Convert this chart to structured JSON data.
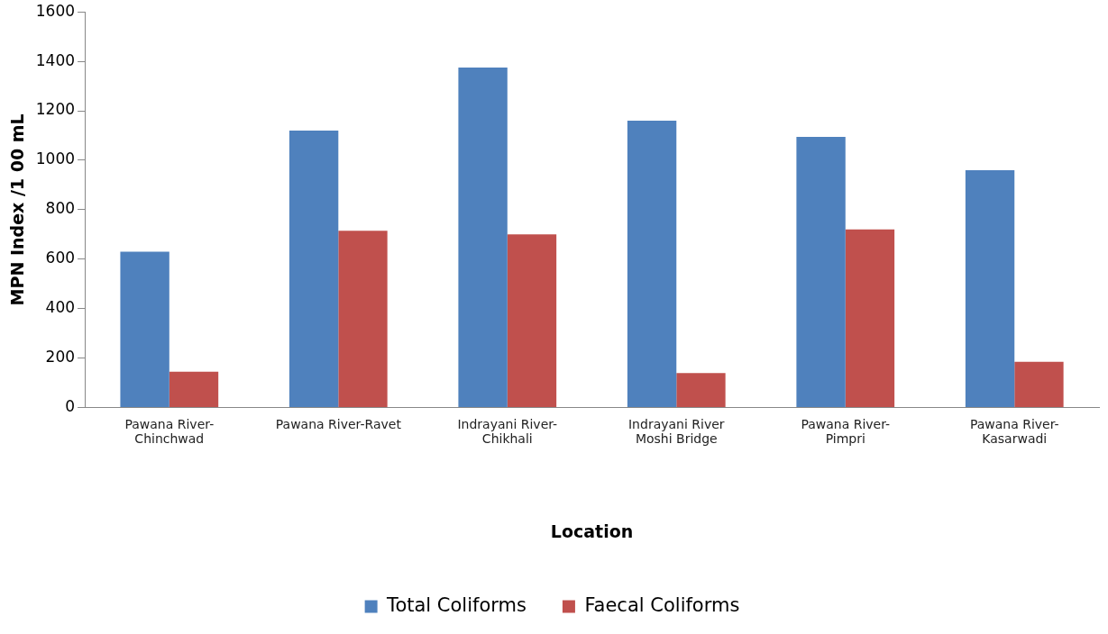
{
  "chart_data": {
    "type": "bar",
    "xlabel": "Location",
    "ylabel": "MPN Index /1 00 mL",
    "categories": [
      "Pawana River-Chinchwad",
      "Pawana River-Ravet",
      "Indrayani River-Chikhali",
      "Indrayani River Moshi Bridge",
      "Pawana River-Pimpri",
      "Pawana River-Kasarwadi"
    ],
    "series": [
      {
        "name": "Total Coliforms",
        "color": "#4f81bd",
        "values": [
          630,
          1120,
          1375,
          1160,
          1095,
          960
        ]
      },
      {
        "name": "Faecal Coliforms",
        "color": "#c0504d",
        "values": [
          145,
          715,
          700,
          140,
          720,
          185
        ]
      }
    ],
    "ylim": [
      0,
      1600
    ],
    "yticks": [
      0,
      200,
      400,
      600,
      800,
      1000,
      1200,
      1400,
      1600
    ],
    "grid": false,
    "legend": "bottom"
  }
}
